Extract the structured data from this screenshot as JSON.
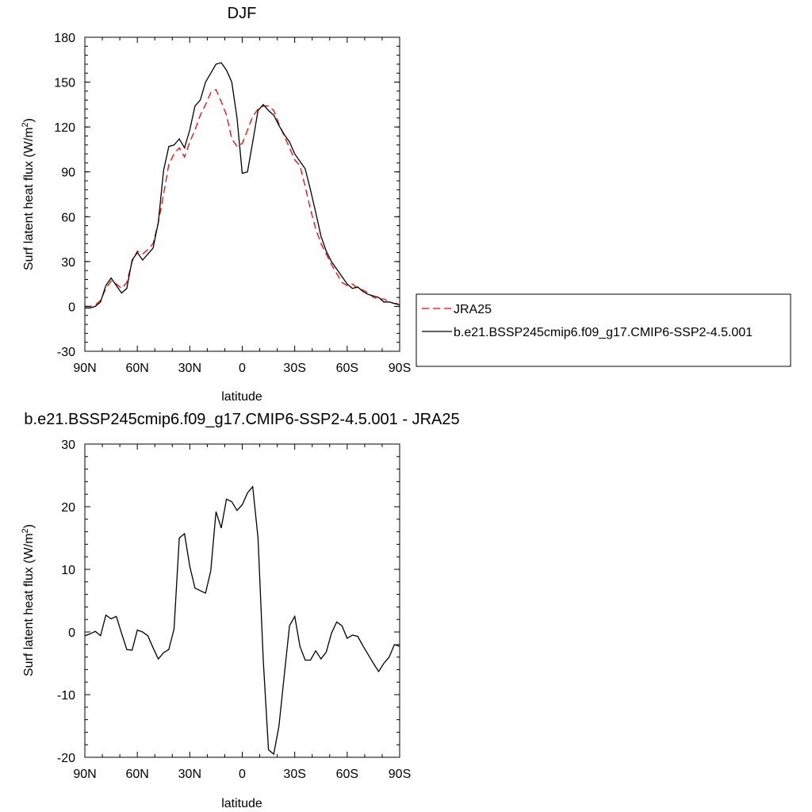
{
  "chart_data": [
    {
      "type": "line",
      "title": "DJF",
      "xlabel": "latitude",
      "ylabel": "Surf latent heat flux (W/m",
      "ylabel_sup": "2",
      "ylabel_tail": ")",
      "xlim": [
        90,
        -90
      ],
      "ylim": [
        -30,
        180
      ],
      "x_ticks": [
        90,
        60,
        30,
        0,
        -30,
        -60,
        -90
      ],
      "x_tick_labels": [
        "90N",
        "60N",
        "30N",
        "0",
        "30S",
        "60S",
        "90S"
      ],
      "y_ticks": [
        -30,
        0,
        30,
        60,
        90,
        120,
        150,
        180
      ],
      "y_tick_labels": [
        "-30",
        "0",
        "30",
        "60",
        "90",
        "120",
        "150",
        "180"
      ],
      "grid": false,
      "legend_placement": "outside-right",
      "series": [
        {
          "name": "JRA25",
          "color": "#ff0000",
          "dash": "dashed",
          "x": [
            90,
            87,
            84,
            81,
            78,
            75,
            72,
            69,
            66,
            63,
            60,
            57,
            54,
            51,
            48,
            45,
            42,
            39,
            36,
            33,
            30,
            27,
            24,
            21,
            18,
            15,
            12,
            9,
            6,
            3,
            0,
            -3,
            -6,
            -9,
            -12,
            -15,
            -18,
            -21,
            -24,
            -27,
            -30,
            -33,
            -36,
            -39,
            -42,
            -45,
            -48,
            -51,
            -54,
            -57,
            -60,
            -63,
            -66,
            -69,
            -72,
            -75,
            -78,
            -81,
            -84,
            -87,
            -90
          ],
          "y": [
            0,
            0,
            1,
            4,
            12,
            17,
            15,
            12,
            16,
            30,
            37,
            35,
            38,
            42,
            56,
            75,
            95,
            102,
            106,
            100,
            110,
            118,
            128,
            135,
            143,
            145,
            137,
            128,
            112,
            107,
            109,
            118,
            127,
            132,
            134,
            134,
            131,
            122,
            114,
            106,
            98,
            94,
            80,
            65,
            52,
            42,
            35,
            28,
            22,
            16,
            14,
            15,
            12,
            11,
            9,
            6,
            5,
            5,
            3,
            2,
            2
          ]
        },
        {
          "name": "b.e21.BSSP245cmip6.f09_g17.CMIP6-SSP2-4.5.001",
          "color": "#000000",
          "dash": "solid",
          "x": [
            90,
            87,
            84,
            81,
            78,
            75,
            72,
            69,
            66,
            63,
            60,
            57,
            54,
            51,
            48,
            45,
            42,
            39,
            36,
            33,
            30,
            27,
            24,
            21,
            18,
            15,
            12,
            9,
            6,
            3,
            0,
            -3,
            -6,
            -9,
            -12,
            -15,
            -18,
            -21,
            -24,
            -27,
            -30,
            -33,
            -36,
            -39,
            -42,
            -45,
            -48,
            -51,
            -54,
            -57,
            -60,
            -63,
            -66,
            -69,
            -72,
            -75,
            -78,
            -81,
            -84,
            -87,
            -90
          ],
          "y": [
            -1,
            -1,
            0,
            3,
            14,
            19,
            14,
            9,
            12,
            31,
            36,
            31,
            35,
            39,
            56,
            91,
            107,
            108,
            112,
            106,
            118,
            134,
            138,
            150,
            156,
            162,
            163,
            158,
            150,
            126,
            89,
            90,
            110,
            131,
            135,
            131,
            128,
            121,
            115,
            110,
            102,
            97,
            92,
            78,
            63,
            47,
            37,
            30,
            25,
            20,
            15,
            12,
            13,
            10,
            8,
            7,
            6,
            3,
            3,
            2,
            1
          ]
        }
      ]
    },
    {
      "type": "line",
      "title": "b.e21.BSSP245cmip6.f09_g17.CMIP6-SSP2-4.5.001 - JRA25",
      "xlabel": "latitude",
      "ylabel": "Surf latent heat flux (W/m",
      "ylabel_sup": "2",
      "ylabel_tail": ")",
      "xlim": [
        90,
        -90
      ],
      "ylim": [
        -20,
        30
      ],
      "x_ticks": [
        90,
        60,
        30,
        0,
        -30,
        -60,
        -90
      ],
      "x_tick_labels": [
        "90N",
        "60N",
        "30N",
        "0",
        "30S",
        "60S",
        "90S"
      ],
      "y_ticks": [
        -20,
        -10,
        0,
        10,
        20,
        30
      ],
      "y_tick_labels": [
        "-20",
        "-10",
        "0",
        "10",
        "20",
        "30"
      ],
      "grid": false,
      "series": [
        {
          "color": "#000000",
          "dash": "solid",
          "x": [
            90,
            87,
            84,
            81,
            78,
            75,
            72,
            69,
            66,
            63,
            60,
            57,
            54,
            51,
            48,
            45,
            42,
            39,
            36,
            33,
            30,
            27,
            24,
            21,
            18,
            15,
            12,
            9,
            6,
            3,
            0,
            -3,
            -6,
            -9,
            -12,
            -15,
            -18,
            -21,
            -24,
            -27,
            -30,
            -33,
            -36,
            -39,
            -42,
            -45,
            -48,
            -51,
            -54,
            -57,
            -60,
            -63,
            -66,
            -69,
            -72,
            -75,
            -78,
            -81,
            -84,
            -87,
            -90
          ],
          "y": [
            -0.6,
            -0.3,
            0.1,
            -0.6,
            2.7,
            2.1,
            2.5,
            -0.2,
            -2.8,
            -2.9,
            0.3,
            0.0,
            -0.6,
            -2.5,
            -4.3,
            -3.3,
            -2.8,
            0.5,
            15.0,
            15.7,
            10.5,
            7.0,
            6.6,
            6.2,
            9.8,
            19.2,
            16.6,
            21.2,
            20.8,
            19.4,
            20.3,
            22.2,
            23.2,
            15.0,
            -4.5,
            -18.8,
            -19.5,
            -15.0,
            -7.0,
            1.0,
            2.5,
            -2.3,
            -4.5,
            -4.5,
            -3.0,
            -4.3,
            -3.2,
            -0.2,
            1.6,
            1.0,
            -1.0,
            -0.5,
            -0.7,
            -2.2,
            -3.6,
            -5.0,
            -6.3,
            -5.0,
            -4.0,
            -2.0,
            -2.3
          ]
        }
      ]
    }
  ]
}
